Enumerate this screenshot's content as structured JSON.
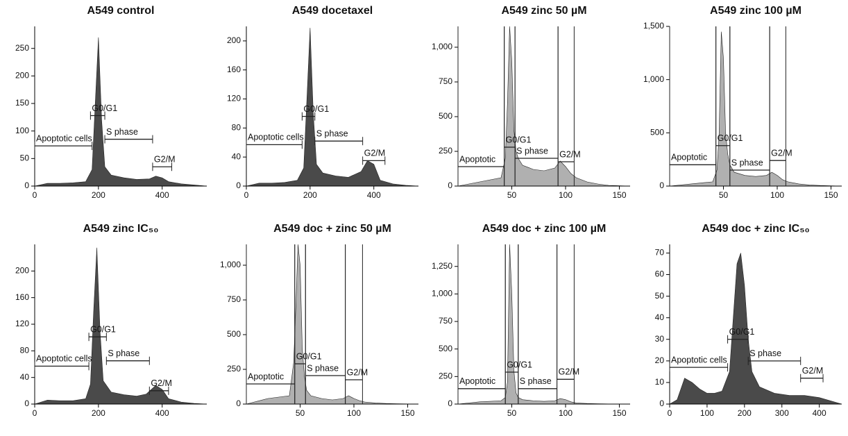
{
  "chart_data": [
    {
      "type": "area",
      "title": "A549 control",
      "color": "#4a4a4a",
      "gate_style": "bar",
      "x": [
        0,
        40,
        80,
        120,
        160,
        180,
        190,
        200,
        210,
        220,
        240,
        280,
        320,
        360,
        380,
        400,
        420,
        460,
        500,
        540
      ],
      "values": [
        0,
        5,
        5,
        6,
        8,
        30,
        150,
        270,
        120,
        35,
        20,
        15,
        12,
        13,
        18,
        15,
        8,
        4,
        2,
        0
      ],
      "xlim": [
        0,
        540
      ],
      "xticks": [
        0,
        200,
        400
      ],
      "ylim": [
        0,
        290
      ],
      "yticks": [
        0,
        50,
        100,
        150,
        200,
        250
      ],
      "markers": [
        {
          "label": "Apoptotic cells",
          "x": [
            0,
            180
          ],
          "y": 73
        },
        {
          "label": "G0/G1",
          "x": [
            175,
            220
          ],
          "y": 128
        },
        {
          "label": "S phase",
          "x": [
            220,
            370
          ],
          "y": 85
        },
        {
          "label": "G2/M",
          "x": [
            370,
            430
          ],
          "y": 35
        }
      ]
    },
    {
      "type": "area",
      "title": "A549 docetaxel",
      "color": "#4a4a4a",
      "gate_style": "bar",
      "x": [
        0,
        40,
        80,
        120,
        160,
        180,
        190,
        200,
        210,
        220,
        240,
        280,
        320,
        360,
        380,
        400,
        420,
        460,
        500,
        540
      ],
      "values": [
        0,
        4,
        4,
        5,
        8,
        25,
        120,
        218,
        100,
        30,
        18,
        14,
        12,
        20,
        35,
        30,
        8,
        3,
        1,
        0
      ],
      "xlim": [
        0,
        540
      ],
      "xticks": [
        0,
        200,
        400
      ],
      "ylim": [
        0,
        220
      ],
      "yticks": [
        0,
        40,
        80,
        120,
        160,
        200
      ],
      "markers": [
        {
          "label": "Apoptotic cells",
          "x": [
            0,
            175
          ],
          "y": 57
        },
        {
          "label": "G0/G1",
          "x": [
            175,
            215
          ],
          "y": 96
        },
        {
          "label": "S phase",
          "x": [
            215,
            365
          ],
          "y": 62
        },
        {
          "label": "G2/M",
          "x": [
            365,
            435
          ],
          "y": 35
        }
      ]
    },
    {
      "type": "area",
      "title": "A549 zinc 50 µM",
      "color": "#b0b0b0",
      "gate_style": "box",
      "x": [
        0,
        20,
        40,
        44,
        46,
        48,
        50,
        52,
        54,
        56,
        60,
        70,
        80,
        90,
        95,
        100,
        105,
        110,
        120,
        130,
        140,
        160
      ],
      "values": [
        0,
        30,
        60,
        200,
        600,
        1150,
        900,
        400,
        250,
        200,
        150,
        120,
        110,
        130,
        180,
        140,
        90,
        60,
        30,
        15,
        5,
        0
      ],
      "xlim": [
        0,
        160
      ],
      "xticks": [
        50,
        100,
        150
      ],
      "ylim": [
        0,
        1150
      ],
      "yticks": [
        0,
        250,
        500,
        750,
        {
          "value": 1000,
          "label": "1,000"
        }
      ],
      "markers": [
        {
          "label": "Apoptotic",
          "x": [
            0,
            43
          ],
          "y": 140
        },
        {
          "label": "G0/G1",
          "x": [
            43,
            53
          ],
          "y": 280
        },
        {
          "label": "S phase",
          "x": [
            53,
            93
          ],
          "y": 200
        },
        {
          "label": "G2/M",
          "x": [
            93,
            108
          ],
          "y": 175
        }
      ]
    },
    {
      "type": "area",
      "title": "A549 zinc 100 µM",
      "color": "#b0b0b0",
      "gate_style": "box",
      "x": [
        0,
        20,
        40,
        44,
        46,
        48,
        50,
        52,
        54,
        56,
        60,
        70,
        80,
        90,
        95,
        100,
        105,
        110,
        120,
        130,
        140,
        160
      ],
      "values": [
        0,
        20,
        40,
        150,
        500,
        1450,
        1200,
        500,
        300,
        200,
        130,
        100,
        90,
        100,
        130,
        100,
        60,
        40,
        20,
        10,
        5,
        0
      ],
      "xlim": [
        0,
        160
      ],
      "xticks": [
        50,
        100,
        150
      ],
      "ylim": [
        0,
        1500
      ],
      "yticks": [
        0,
        500,
        {
          "value": 1000,
          "label": "1,000"
        },
        {
          "value": 1500,
          "label": "1,500"
        }
      ],
      "markers": [
        {
          "label": "Apoptotic",
          "x": [
            0,
            43
          ],
          "y": 200
        },
        {
          "label": "G0/G1",
          "x": [
            43,
            56
          ],
          "y": 380
        },
        {
          "label": "S phase",
          "x": [
            56,
            93
          ],
          "y": 150
        },
        {
          "label": "G2/M",
          "x": [
            93,
            108
          ],
          "y": 240
        }
      ]
    },
    {
      "type": "area",
      "title": "A549 zinc IC₅₀",
      "color": "#4a4a4a",
      "gate_style": "bar",
      "x": [
        0,
        40,
        80,
        120,
        160,
        175,
        185,
        195,
        205,
        215,
        240,
        280,
        320,
        350,
        380,
        400,
        420,
        460,
        500,
        540
      ],
      "values": [
        0,
        6,
        5,
        5,
        8,
        30,
        140,
        235,
        110,
        35,
        18,
        14,
        12,
        15,
        28,
        22,
        8,
        3,
        1,
        0
      ],
      "xlim": [
        0,
        540
      ],
      "xticks": [
        0,
        200,
        400
      ],
      "ylim": [
        0,
        240
      ],
      "yticks": [
        0,
        40,
        80,
        120,
        160,
        200
      ],
      "markers": [
        {
          "label": "Apoptotic cells",
          "x": [
            0,
            170
          ],
          "y": 57
        },
        {
          "label": "G0/G1",
          "x": [
            170,
            225
          ],
          "y": 101
        },
        {
          "label": "S phase",
          "x": [
            225,
            360
          ],
          "y": 65
        },
        {
          "label": "G2/M",
          "x": [
            360,
            420
          ],
          "y": 20
        }
      ]
    },
    {
      "type": "area",
      "title": "A549 doc + zinc 50 µM",
      "color": "#b0b0b0",
      "gate_style": "box",
      "x": [
        0,
        20,
        40,
        44,
        46,
        48,
        50,
        52,
        54,
        56,
        60,
        70,
        80,
        90,
        95,
        100,
        105,
        110,
        120,
        130,
        140,
        160
      ],
      "values": [
        0,
        40,
        60,
        300,
        700,
        1150,
        1000,
        400,
        200,
        100,
        60,
        40,
        30,
        40,
        60,
        40,
        25,
        15,
        8,
        4,
        2,
        0
      ],
      "xlim": [
        0,
        160
      ],
      "xticks": [
        50,
        100,
        150
      ],
      "ylim": [
        0,
        1150
      ],
      "yticks": [
        0,
        250,
        500,
        750,
        {
          "value": 1000,
          "label": "1,000"
        }
      ],
      "markers": [
        {
          "label": "Apoptotic",
          "x": [
            0,
            45
          ],
          "y": 145
        },
        {
          "label": "G0/G1",
          "x": [
            45,
            55
          ],
          "y": 290
        },
        {
          "label": "S phase",
          "x": [
            55,
            92
          ],
          "y": 205
        },
        {
          "label": "G2/M",
          "x": [
            92,
            108
          ],
          "y": 175
        }
      ]
    },
    {
      "type": "area",
      "title": "A549 doc + zinc 100 µM",
      "color": "#b0b0b0",
      "gate_style": "box",
      "x": [
        0,
        20,
        40,
        44,
        46,
        48,
        50,
        52,
        54,
        56,
        60,
        70,
        80,
        90,
        95,
        100,
        105,
        110,
        120,
        130,
        140,
        160
      ],
      "values": [
        0,
        20,
        30,
        60,
        200,
        1450,
        1000,
        300,
        100,
        60,
        40,
        30,
        25,
        30,
        50,
        40,
        20,
        10,
        5,
        3,
        1,
        0
      ],
      "xlim": [
        0,
        160
      ],
      "xticks": [
        50,
        100,
        150
      ],
      "ylim": [
        0,
        1450
      ],
      "yticks": [
        0,
        250,
        500,
        750,
        {
          "value": 1000,
          "label": "1,000"
        },
        {
          "value": 1250,
          "label": "1,250"
        }
      ],
      "markers": [
        {
          "label": "Apoptotic",
          "x": [
            0,
            44
          ],
          "y": 140
        },
        {
          "label": "G0/G1",
          "x": [
            44,
            56
          ],
          "y": 290
        },
        {
          "label": "S phase",
          "x": [
            56,
            92
          ],
          "y": 140
        },
        {
          "label": "G2/M",
          "x": [
            92,
            108
          ],
          "y": 225
        }
      ]
    },
    {
      "type": "area",
      "title": "A549 doc + zinc IC₅₀",
      "color": "#4a4a4a",
      "gate_style": "bar",
      "x": [
        0,
        20,
        40,
        60,
        80,
        100,
        120,
        140,
        160,
        170,
        180,
        190,
        200,
        210,
        220,
        240,
        280,
        320,
        360,
        400,
        440,
        460
      ],
      "values": [
        0,
        2,
        12,
        10,
        7,
        5,
        5,
        6,
        15,
        40,
        65,
        70,
        55,
        30,
        15,
        8,
        5,
        4,
        4,
        3,
        1,
        0
      ],
      "xlim": [
        0,
        460
      ],
      "xticks": [
        0,
        100,
        200,
        300,
        400
      ],
      "ylim": [
        0,
        74
      ],
      "yticks": [
        0,
        10,
        20,
        30,
        40,
        50,
        60,
        70
      ],
      "markers": [
        {
          "label": "Apoptotic cells",
          "x": [
            0,
            155
          ],
          "y": 17
        },
        {
          "label": "G0/G1",
          "x": [
            155,
            210
          ],
          "y": 30
        },
        {
          "label": "S phase",
          "x": [
            210,
            350
          ],
          "y": 20
        },
        {
          "label": "G2/M",
          "x": [
            350,
            410
          ],
          "y": 12
        }
      ]
    }
  ]
}
